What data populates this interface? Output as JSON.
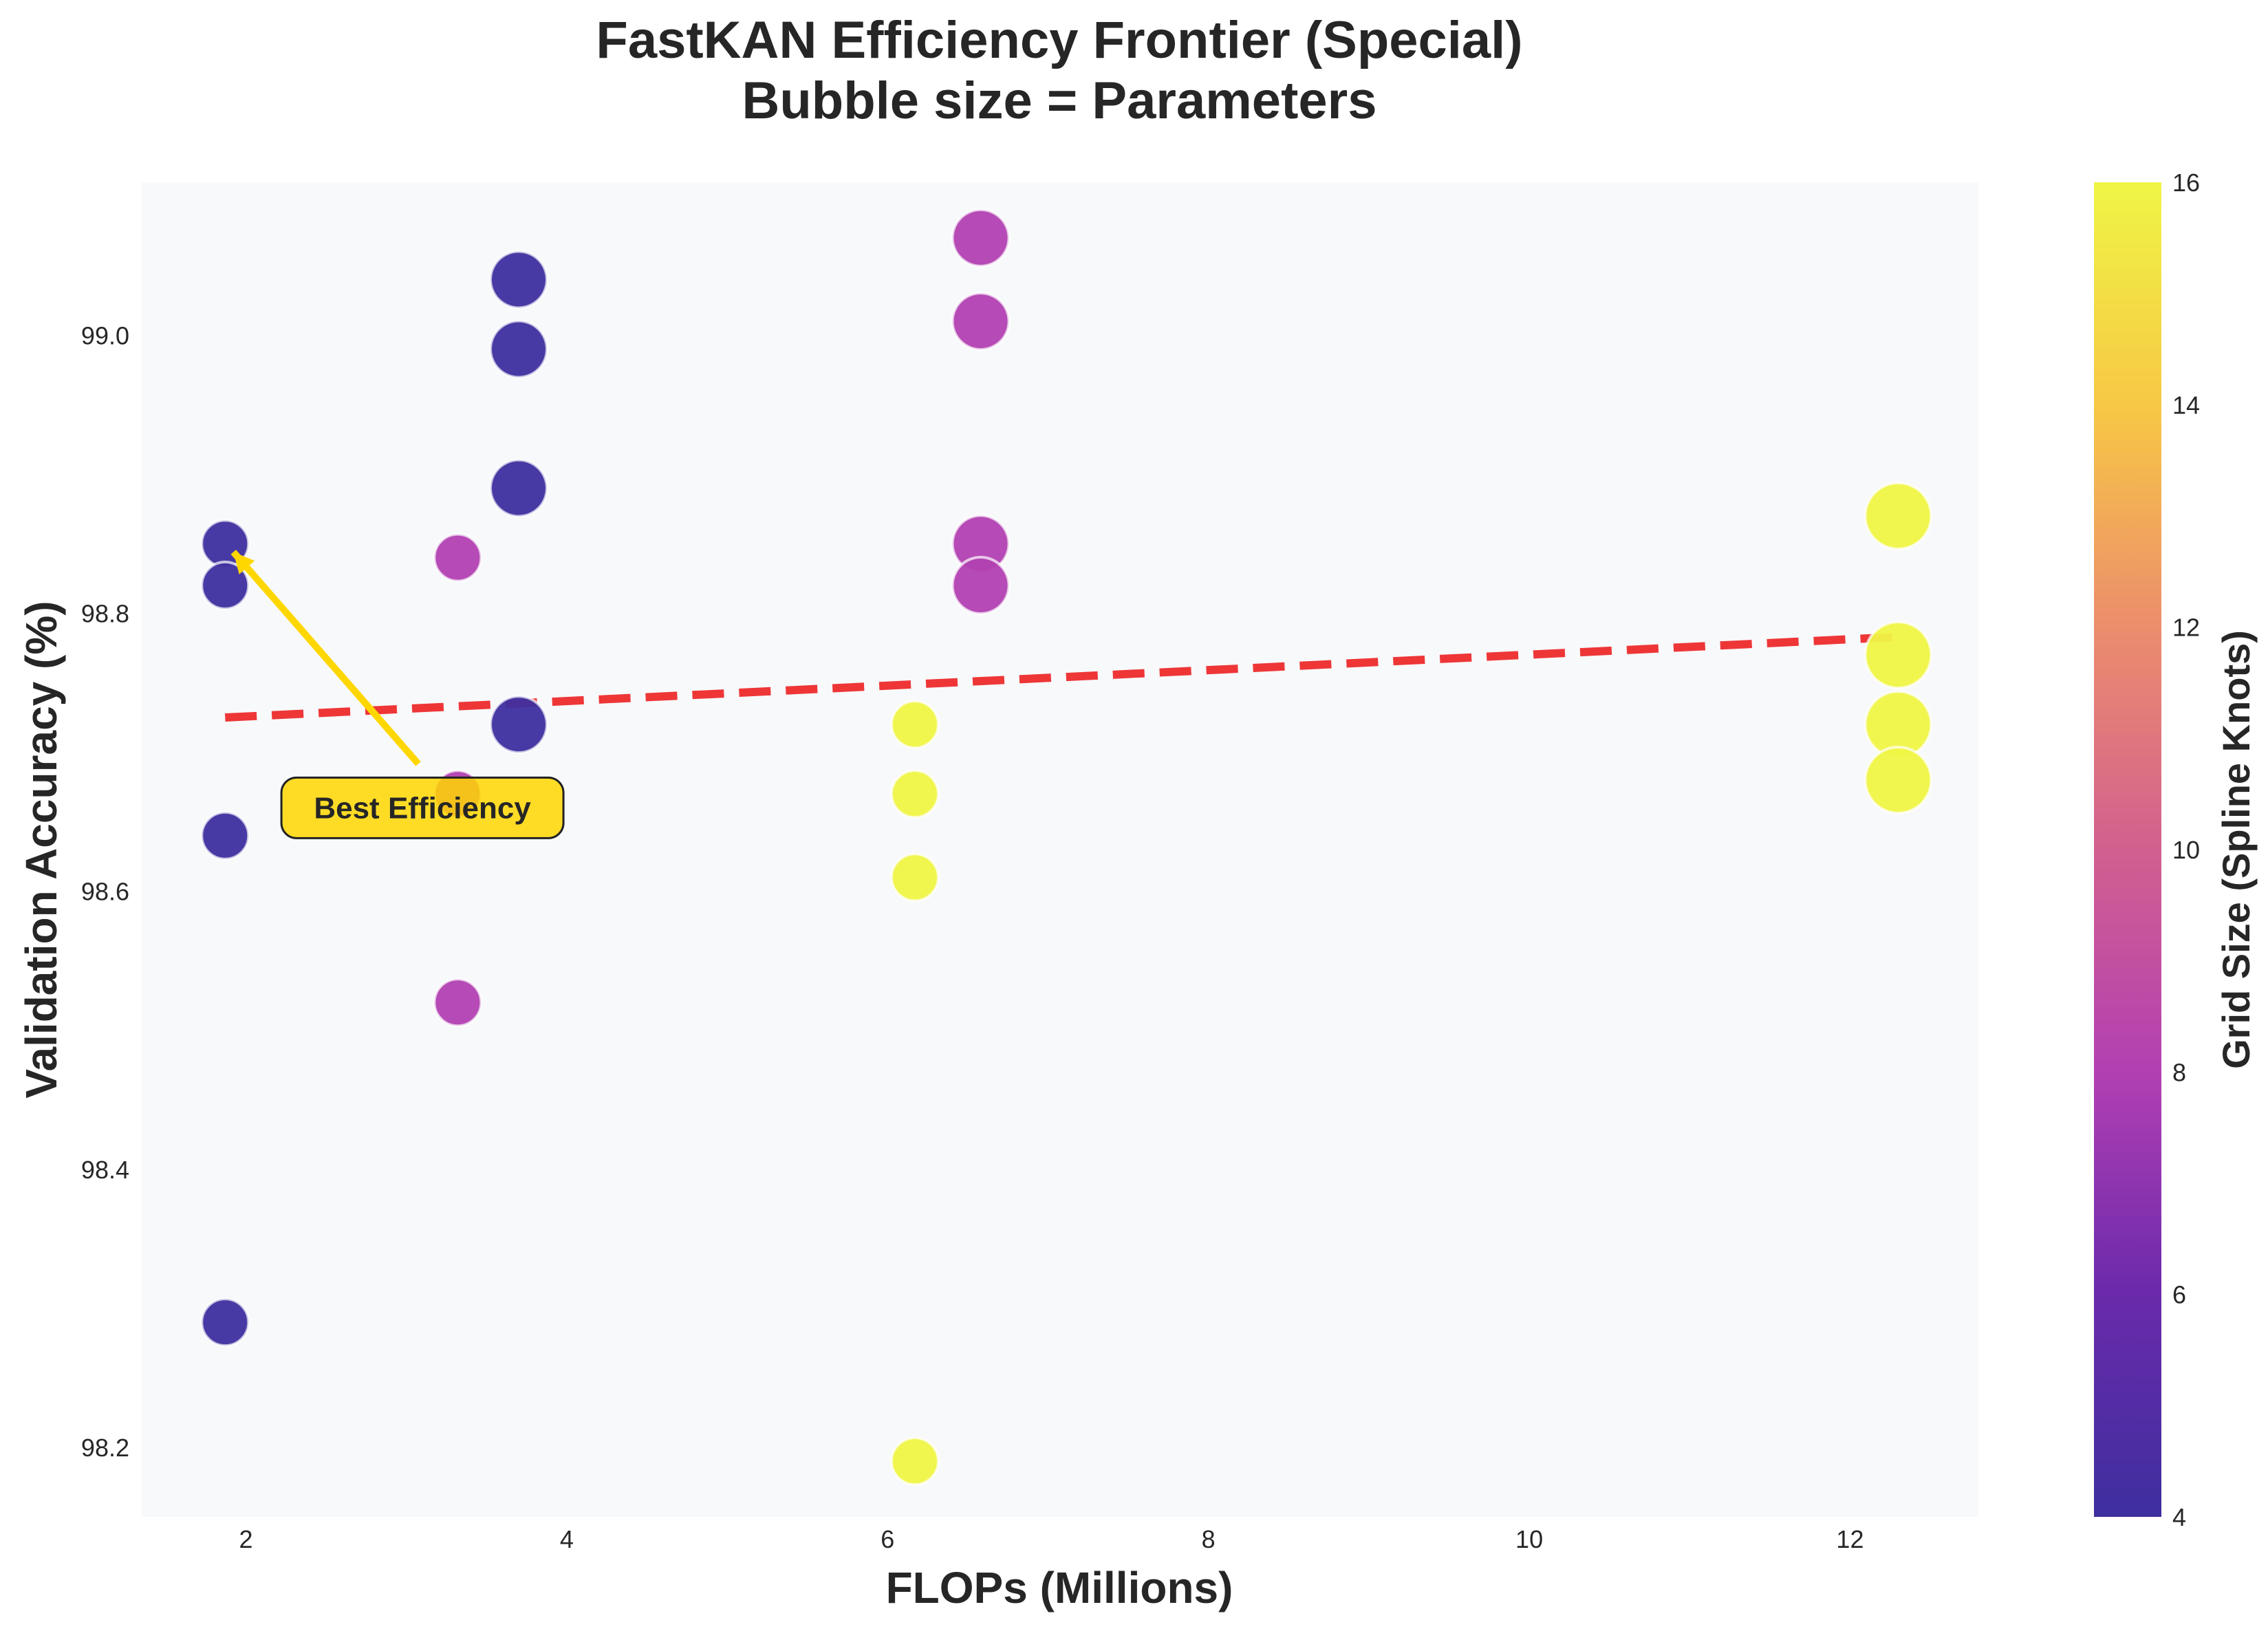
{
  "chart_data": {
    "type": "scatter",
    "title": "FastKAN Efficiency Frontier (Special)",
    "subtitle": "Bubble size = Parameters",
    "xlabel": "FLOPs (Millions)",
    "ylabel": "Validation Accuracy (%)",
    "xlim": [
      1.35,
      12.8
    ],
    "ylim": [
      98.15,
      99.11
    ],
    "xticks": [
      2,
      4,
      6,
      8,
      10,
      12
    ],
    "yticks": [
      98.2,
      98.4,
      98.6,
      98.8,
      99.0
    ],
    "xtick_labels": [
      "2",
      "4",
      "6",
      "8",
      "10",
      "12"
    ],
    "ytick_labels": [
      "98.2",
      "98.4",
      "98.6",
      "98.8",
      "99.0"
    ],
    "grid": false,
    "background_color": "#f8f9fb",
    "colorbar": {
      "label": "Grid Size (Spline Knots)",
      "range": [
        4,
        16
      ],
      "ticks": [
        4,
        6,
        8,
        10,
        12,
        14,
        16
      ],
      "tick_labels": [
        "4",
        "6",
        "8",
        "10",
        "12",
        "14",
        "16"
      ],
      "colormap": "plasma"
    },
    "points": [
      {
        "x": 1.87,
        "y": 98.85,
        "grid_size": 4,
        "params": 1.0
      },
      {
        "x": 1.87,
        "y": 98.82,
        "grid_size": 4,
        "params": 1.0
      },
      {
        "x": 1.87,
        "y": 98.64,
        "grid_size": 4,
        "params": 1.0
      },
      {
        "x": 1.87,
        "y": 98.29,
        "grid_size": 4,
        "params": 1.0
      },
      {
        "x": 3.32,
        "y": 98.84,
        "grid_size": 8,
        "params": 1.0
      },
      {
        "x": 3.32,
        "y": 98.67,
        "grid_size": 8,
        "params": 1.0
      },
      {
        "x": 3.32,
        "y": 98.52,
        "grid_size": 8,
        "params": 1.0
      },
      {
        "x": 3.7,
        "y": 99.04,
        "grid_size": 4,
        "params": 2.0
      },
      {
        "x": 3.7,
        "y": 98.99,
        "grid_size": 4,
        "params": 2.0
      },
      {
        "x": 3.7,
        "y": 98.89,
        "grid_size": 4,
        "params": 2.0
      },
      {
        "x": 3.7,
        "y": 98.72,
        "grid_size": 4,
        "params": 2.0
      },
      {
        "x": 6.17,
        "y": 98.72,
        "grid_size": 16,
        "params": 1.0
      },
      {
        "x": 6.17,
        "y": 98.67,
        "grid_size": 16,
        "params": 1.0
      },
      {
        "x": 6.17,
        "y": 98.61,
        "grid_size": 16,
        "params": 1.0
      },
      {
        "x": 6.17,
        "y": 98.19,
        "grid_size": 16,
        "params": 1.0
      },
      {
        "x": 6.58,
        "y": 99.07,
        "grid_size": 8,
        "params": 2.0
      },
      {
        "x": 6.58,
        "y": 99.01,
        "grid_size": 8,
        "params": 2.0
      },
      {
        "x": 6.58,
        "y": 98.85,
        "grid_size": 8,
        "params": 2.0
      },
      {
        "x": 6.58,
        "y": 98.82,
        "grid_size": 8,
        "params": 2.0
      },
      {
        "x": 12.3,
        "y": 98.87,
        "grid_size": 16,
        "params": 3.0
      },
      {
        "x": 12.3,
        "y": 98.77,
        "grid_size": 16,
        "params": 3.0
      },
      {
        "x": 12.3,
        "y": 98.72,
        "grid_size": 16,
        "params": 3.0
      },
      {
        "x": 12.3,
        "y": 98.68,
        "grid_size": 16,
        "params": 3.0
      }
    ],
    "trend_line": {
      "x": [
        1.87,
        12.3
      ],
      "y": [
        98.725,
        98.783
      ],
      "color": "#ee2222",
      "style": "dashed"
    },
    "annotation": {
      "text": "Best Efficiency",
      "text_x": 3.1,
      "text_y": 98.66,
      "target_x": 1.87,
      "target_y": 98.85,
      "color": "#ffd700"
    }
  }
}
